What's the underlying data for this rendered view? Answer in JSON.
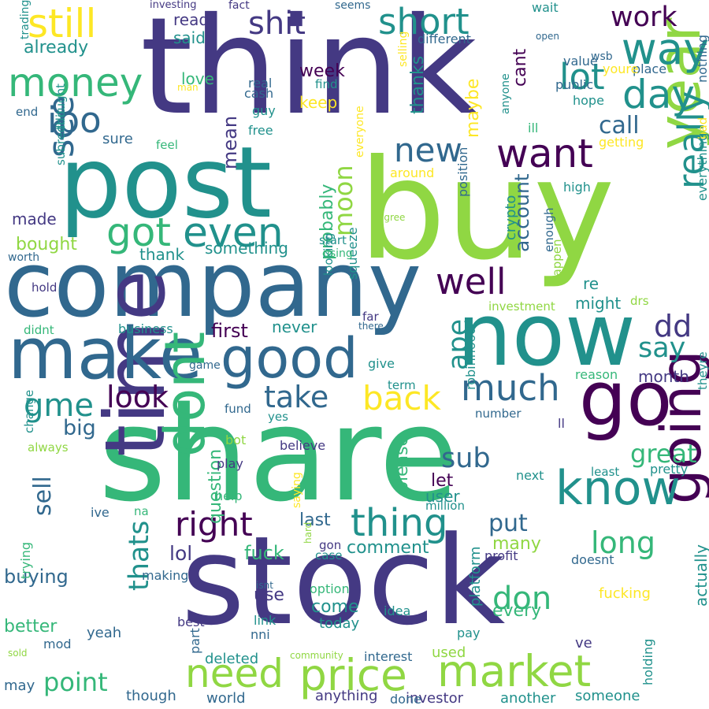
{
  "palette": {
    "c0": "#440154",
    "c1": "#443983",
    "c2": "#31688e",
    "c3": "#21918c",
    "c4": "#35b779",
    "c5": "#90d743",
    "c6": "#fde725"
  },
  "words": [
    {
      "t": "think",
      "c": "c1"
    },
    {
      "t": "buy",
      "c": "c5"
    },
    {
      "t": "post",
      "c": "c3"
    },
    {
      "t": "share",
      "c": "c4"
    },
    {
      "t": "stock",
      "c": "c1"
    },
    {
      "t": "company",
      "c": "c2"
    },
    {
      "t": "now",
      "c": "c3"
    },
    {
      "t": "go",
      "c": "c0"
    },
    {
      "t": "time",
      "c": "c1"
    },
    {
      "t": "make",
      "c": "c2"
    },
    {
      "t": "dont",
      "c": "c4"
    },
    {
      "t": "good",
      "c": "c2"
    },
    {
      "t": "year",
      "c": "c5"
    },
    {
      "t": "going",
      "c": "c0"
    },
    {
      "t": "price",
      "c": "c5"
    },
    {
      "t": "market",
      "c": "c5"
    },
    {
      "t": "know",
      "c": "c3"
    },
    {
      "t": "need",
      "c": "c5"
    },
    {
      "t": "even",
      "c": "c3"
    },
    {
      "t": "want",
      "c": "c0"
    },
    {
      "t": "well",
      "c": "c0"
    },
    {
      "t": "thing",
      "c": "c3"
    },
    {
      "t": "money",
      "c": "c4"
    },
    {
      "t": "right",
      "c": "c0"
    },
    {
      "t": "got",
      "c": "c4"
    },
    {
      "t": "short",
      "c": "c3"
    },
    {
      "t": "shit",
      "c": "c1"
    },
    {
      "t": "still",
      "c": "c6"
    },
    {
      "t": "way",
      "c": "c3"
    },
    {
      "t": "much",
      "c": "c2"
    },
    {
      "t": "day",
      "c": "c3"
    },
    {
      "t": "really",
      "c": "c3"
    },
    {
      "t": "ipo",
      "c": "c2"
    },
    {
      "t": "see",
      "c": "c2"
    },
    {
      "t": "lot",
      "c": "c3"
    },
    {
      "t": "new",
      "c": "c2"
    },
    {
      "t": "back",
      "c": "c6"
    },
    {
      "t": "take",
      "c": "c2"
    },
    {
      "t": "gme",
      "c": "c3"
    },
    {
      "t": "dd",
      "c": "c1"
    },
    {
      "t": "work",
      "c": "c0"
    },
    {
      "t": "moon",
      "c": "c5"
    },
    {
      "t": "ape",
      "c": "c3"
    },
    {
      "t": "look",
      "c": "c0"
    },
    {
      "t": "say",
      "c": "c3"
    },
    {
      "t": "don",
      "c": "c4"
    },
    {
      "t": "long",
      "c": "c4"
    },
    {
      "t": "great",
      "c": "c4"
    },
    {
      "t": "sub",
      "c": "c2"
    },
    {
      "t": "thats",
      "c": "c3"
    },
    {
      "t": "point",
      "c": "c4"
    },
    {
      "t": "sell",
      "c": "c2"
    },
    {
      "t": "put",
      "c": "c2"
    },
    {
      "t": "call",
      "c": "c2"
    },
    {
      "t": "lol",
      "c": "c1"
    },
    {
      "t": "probably",
      "c": "c4"
    },
    {
      "t": "first",
      "c": "c0"
    },
    {
      "t": "fuck",
      "c": "c4"
    },
    {
      "t": "mean",
      "c": "c1"
    },
    {
      "t": "account",
      "c": "c2"
    },
    {
      "t": "big",
      "c": "c2"
    },
    {
      "t": "buying",
      "c": "c2"
    },
    {
      "t": "already",
      "c": "c3"
    },
    {
      "t": "better",
      "c": "c4"
    },
    {
      "t": "thanks",
      "c": "c3"
    },
    {
      "t": "something",
      "c": "c3"
    },
    {
      "t": "bought",
      "c": "c5"
    },
    {
      "t": "week",
      "c": "c0"
    },
    {
      "t": "please",
      "c": "c4"
    },
    {
      "t": "last",
      "c": "c2"
    },
    {
      "t": "every",
      "c": "c4"
    },
    {
      "t": "many",
      "c": "c5"
    },
    {
      "t": "let",
      "c": "c0"
    },
    {
      "t": "maybe",
      "c": "c6"
    },
    {
      "t": "cant",
      "c": "c0"
    },
    {
      "t": "come",
      "c": "c3"
    },
    {
      "t": "month",
      "c": "c1"
    },
    {
      "t": "comment",
      "c": "c3"
    },
    {
      "t": "use",
      "c": "c1"
    },
    {
      "t": "user",
      "c": "c3"
    },
    {
      "t": "actually",
      "c": "c3"
    },
    {
      "t": "never",
      "c": "c3"
    },
    {
      "t": "question",
      "c": "c4"
    },
    {
      "t": "made",
      "c": "c1"
    },
    {
      "t": "thank",
      "c": "c3"
    },
    {
      "t": "love",
      "c": "c4"
    },
    {
      "t": "keep",
      "c": "c6"
    },
    {
      "t": "read",
      "c": "c1"
    },
    {
      "t": "said",
      "c": "c3"
    },
    {
      "t": "sure",
      "c": "c2"
    },
    {
      "t": "crypto",
      "c": "c3"
    },
    {
      "t": "today",
      "c": "c3"
    },
    {
      "t": "re",
      "c": "c3"
    },
    {
      "t": "might",
      "c": "c3"
    },
    {
      "t": "fucking",
      "c": "c6"
    },
    {
      "t": "platform",
      "c": "c3"
    },
    {
      "t": "yeah",
      "c": "c2"
    },
    {
      "t": "though",
      "c": "c2"
    },
    {
      "t": "world",
      "c": "c2"
    },
    {
      "t": "anything",
      "c": "c1"
    },
    {
      "t": "investor",
      "c": "c1"
    },
    {
      "t": "another",
      "c": "c3"
    },
    {
      "t": "someone",
      "c": "c3"
    },
    {
      "t": "done",
      "c": "c2"
    },
    {
      "t": "may",
      "c": "c2"
    },
    {
      "t": "deleted",
      "c": "c3"
    },
    {
      "t": "interest",
      "c": "c2"
    },
    {
      "t": "used",
      "c": "c5"
    },
    {
      "t": "community",
      "c": "c5"
    },
    {
      "t": "pay",
      "c": "c3"
    },
    {
      "t": "ve",
      "c": "c1"
    },
    {
      "t": "holding",
      "c": "c3"
    },
    {
      "t": "doesnt",
      "c": "c2"
    },
    {
      "t": "profit",
      "c": "c1"
    },
    {
      "t": "case",
      "c": "c3"
    },
    {
      "t": "gon",
      "c": "c1"
    },
    {
      "t": "idea",
      "c": "c3"
    },
    {
      "t": "option",
      "c": "c4"
    },
    {
      "t": "link",
      "c": "c3"
    },
    {
      "t": "nni",
      "c": "c2"
    },
    {
      "t": "best",
      "c": "c1"
    },
    {
      "t": "part",
      "c": "c2"
    },
    {
      "t": "mod",
      "c": "c2"
    },
    {
      "t": "sold",
      "c": "c5"
    },
    {
      "t": "making",
      "c": "c2"
    },
    {
      "t": "isnt",
      "c": "c2"
    },
    {
      "t": "trying",
      "c": "c4"
    },
    {
      "t": "hard",
      "c": "c5"
    },
    {
      "t": "na",
      "c": "c4"
    },
    {
      "t": "ive",
      "c": "c2"
    },
    {
      "t": "help",
      "c": "c4"
    },
    {
      "t": "saying",
      "c": "c6"
    },
    {
      "t": "play",
      "c": "c1"
    },
    {
      "t": "believe",
      "c": "c1"
    },
    {
      "t": "bot",
      "c": "c5"
    },
    {
      "t": "always",
      "c": "c5"
    },
    {
      "t": "change",
      "c": "c3"
    },
    {
      "t": "yes",
      "c": "c3"
    },
    {
      "t": "fund",
      "c": "c2"
    },
    {
      "t": "game",
      "c": "c2"
    },
    {
      "t": "term",
      "c": "c3"
    },
    {
      "t": "give",
      "c": "c3"
    },
    {
      "t": "robinhood",
      "c": "c3"
    },
    {
      "t": "million",
      "c": "c3"
    },
    {
      "t": "ll",
      "c": "c1"
    },
    {
      "t": "number",
      "c": "c2"
    },
    {
      "t": "next",
      "c": "c3"
    },
    {
      "t": "least",
      "c": "c3"
    },
    {
      "t": "pretty",
      "c": "c3"
    },
    {
      "t": "theyre",
      "c": "c3"
    },
    {
      "t": "reason",
      "c": "c4"
    },
    {
      "t": "drs",
      "c": "c5"
    },
    {
      "t": "investment",
      "c": "c5"
    },
    {
      "t": "happen",
      "c": "c5"
    },
    {
      "t": "enough",
      "c": "c2"
    },
    {
      "t": "high",
      "c": "c3"
    },
    {
      "t": "bad",
      "c": "c6"
    },
    {
      "t": "everything",
      "c": "c3"
    },
    {
      "t": "getting",
      "c": "c6"
    },
    {
      "t": "ill",
      "c": "c4"
    },
    {
      "t": "nothing",
      "c": "c2"
    },
    {
      "t": "hope",
      "c": "c3"
    },
    {
      "t": "place",
      "c": "c2"
    },
    {
      "t": "youre",
      "c": "c6"
    },
    {
      "t": "public",
      "c": "c2"
    },
    {
      "t": "value",
      "c": "c2"
    },
    {
      "t": "wsb",
      "c": "c2"
    },
    {
      "t": "open",
      "c": "c2"
    },
    {
      "t": "wait",
      "c": "c3"
    },
    {
      "t": "seems",
      "c": "c2"
    },
    {
      "t": "different",
      "c": "c2"
    },
    {
      "t": "fact",
      "c": "c1"
    },
    {
      "t": "investing",
      "c": "c1"
    },
    {
      "t": "trading",
      "c": "c3"
    },
    {
      "t": "end",
      "c": "c2"
    },
    {
      "t": "man",
      "c": "c6"
    },
    {
      "t": "real",
      "c": "c2"
    },
    {
      "t": "cash",
      "c": "c2"
    },
    {
      "t": "guy",
      "c": "c3"
    },
    {
      "t": "free",
      "c": "c3"
    },
    {
      "t": "feel",
      "c": "c4"
    },
    {
      "t": "thought",
      "c": "c3"
    },
    {
      "t": "subreddit",
      "c": "c3"
    },
    {
      "t": "worth",
      "c": "c2"
    },
    {
      "t": "hold",
      "c": "c1"
    },
    {
      "t": "didnt",
      "c": "c4"
    },
    {
      "t": "business",
      "c": "c3"
    },
    {
      "t": "squeeze",
      "c": "c3"
    },
    {
      "t": "there",
      "c": "c2"
    },
    {
      "t": "far",
      "c": "c1"
    },
    {
      "t": "looking",
      "c": "c3"
    },
    {
      "t": "start",
      "c": "c3"
    },
    {
      "t": "using",
      "c": "c4"
    },
    {
      "t": "agree",
      "c": "c5"
    },
    {
      "t": "position",
      "c": "c2"
    },
    {
      "t": "around",
      "c": "c6"
    },
    {
      "t": "everyone",
      "c": "c6"
    },
    {
      "t": "anyone",
      "c": "c3"
    },
    {
      "t": "selling",
      "c": "c6"
    },
    {
      "t": "find",
      "c": "c3"
    }
  ]
}
